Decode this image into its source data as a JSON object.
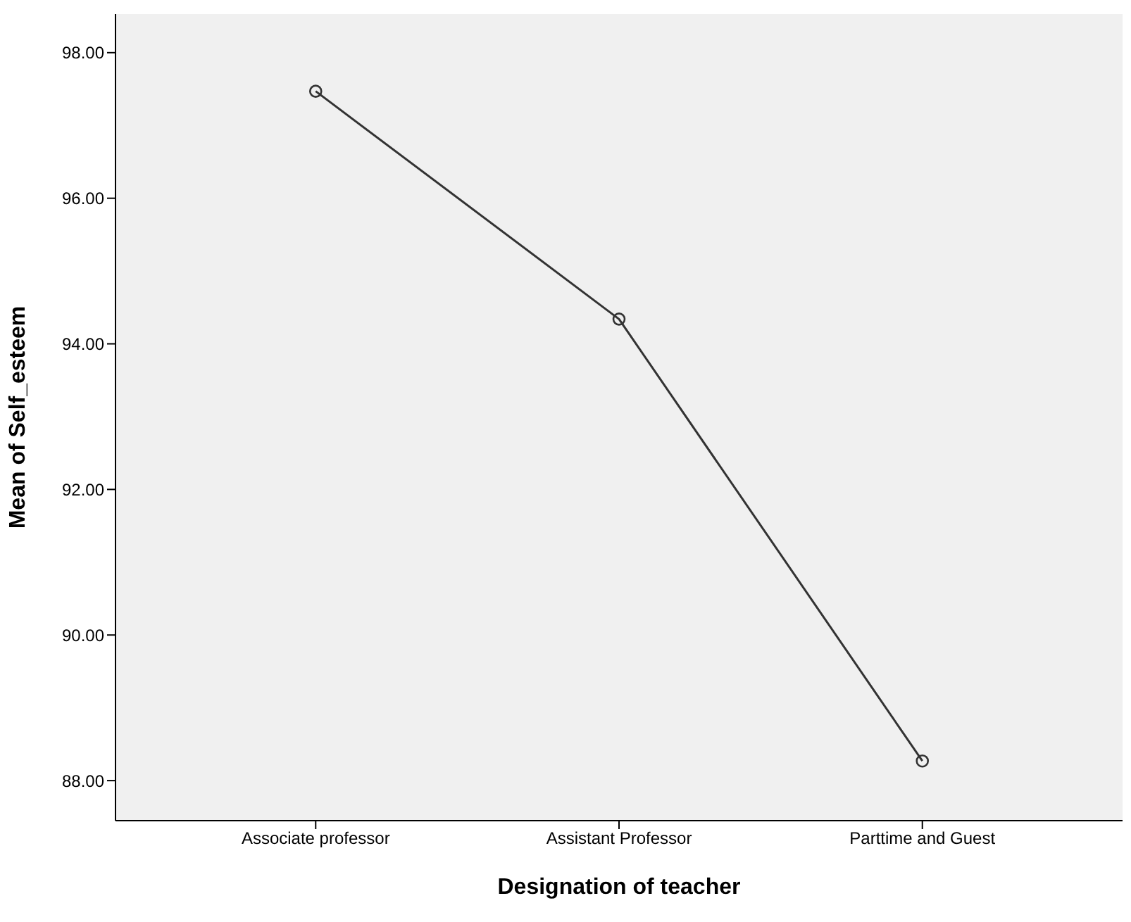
{
  "chart_data": {
    "type": "line",
    "xlabel": "Designation of teacher",
    "ylabel": "Mean of Self_esteem",
    "categories": [
      "Associate professor",
      "Assistant Professor",
      "Parttime and Guest"
    ],
    "series": [
      {
        "color": "#333333",
        "values": [
          97.47,
          94.34,
          88.27
        ]
      }
    ],
    "ylim": [
      87.45,
      98.53
    ],
    "yticks": [
      {
        "value": 88,
        "label": "88.00"
      },
      {
        "value": 90,
        "label": "90.00"
      },
      {
        "value": 92,
        "label": "92.00"
      },
      {
        "value": 94,
        "label": "94.00"
      },
      {
        "value": 96,
        "label": "96.00"
      },
      {
        "value": 98,
        "label": "98.00"
      }
    ],
    "grid": false,
    "legend": false,
    "marker": "circle",
    "line_style": "solid"
  }
}
